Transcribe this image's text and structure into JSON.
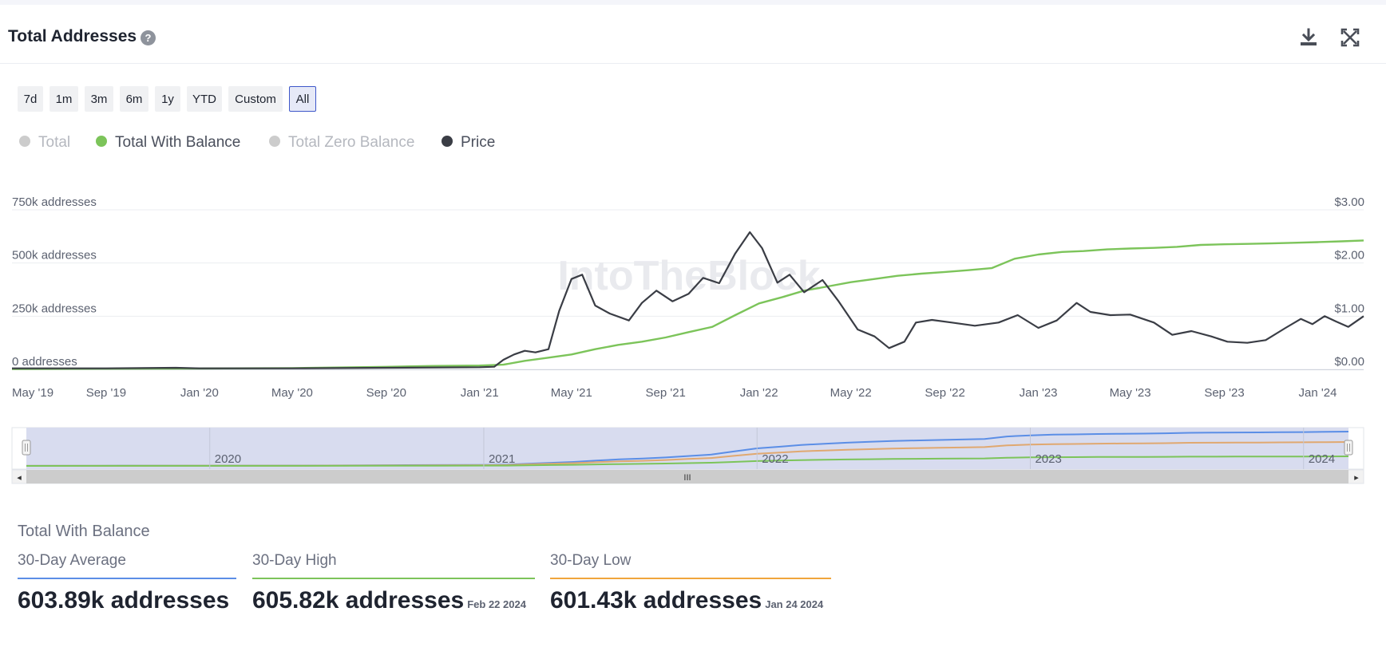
{
  "header": {
    "title": "Total Addresses",
    "help_symbol": "?",
    "download_icon": "download-icon",
    "fullscreen_icon": "fullscreen-icon"
  },
  "ranges": [
    {
      "label": "7d",
      "active": false
    },
    {
      "label": "1m",
      "active": false
    },
    {
      "label": "3m",
      "active": false
    },
    {
      "label": "6m",
      "active": false
    },
    {
      "label": "1y",
      "active": false
    },
    {
      "label": "YTD",
      "active": false
    },
    {
      "label": "Custom",
      "active": false
    },
    {
      "label": "All",
      "active": true
    }
  ],
  "legend": [
    {
      "label": "Total",
      "color": "#cccccc",
      "enabled": false
    },
    {
      "label": "Total With Balance",
      "color": "#7cc45a",
      "enabled": true
    },
    {
      "label": "Total Zero Balance",
      "color": "#cccccc",
      "enabled": false
    },
    {
      "label": "Price",
      "color": "#3a3d45",
      "enabled": true
    }
  ],
  "colors": {
    "balance": "#7cc45a",
    "price": "#3a3d45",
    "navigator_total": "#5b8ee6",
    "navigator_zero": "#e0a870",
    "navigator_balance": "#7cc45a",
    "avg_line": "#5b8ee6",
    "high_line": "#7cc45a",
    "low_line": "#f0a53c"
  },
  "watermark": "IntoTheBlock",
  "chart_data": {
    "type": "line",
    "x_axis": {
      "type": "datetime",
      "range": [
        "2019-05-01",
        "2024-03-01"
      ],
      "tick_labels": [
        "May '19",
        "Sep '19",
        "Jan '20",
        "May '20",
        "Sep '20",
        "Jan '21",
        "May '21",
        "Sep '21",
        "Jan '22",
        "May '22",
        "Sep '22",
        "Jan '23",
        "May '23",
        "Sep '23",
        "Jan '24"
      ],
      "tick_dates": [
        "2019-05-01",
        "2019-09-01",
        "2020-01-01",
        "2020-05-01",
        "2020-09-01",
        "2021-01-01",
        "2021-05-01",
        "2021-09-01",
        "2022-01-01",
        "2022-05-01",
        "2022-09-01",
        "2023-01-01",
        "2023-05-01",
        "2023-09-01",
        "2024-01-01"
      ]
    },
    "y_left": {
      "tick_labels": [
        "0 addresses",
        "250k addresses",
        "500k addresses",
        "750k addresses"
      ],
      "range": [
        0,
        750000
      ]
    },
    "y_right": {
      "tick_labels": [
        "$0.00",
        "$1.00",
        "$2.00",
        "$3.00"
      ],
      "range": [
        0,
        3
      ]
    },
    "grid": true,
    "series": [
      {
        "name": "Total With Balance",
        "axis": "left",
        "points": [
          [
            "2019-05-01",
            2000
          ],
          [
            "2019-09-01",
            3000
          ],
          [
            "2020-01-01",
            4000
          ],
          [
            "2020-05-01",
            6000
          ],
          [
            "2020-09-01",
            12000
          ],
          [
            "2020-11-01",
            16000
          ],
          [
            "2021-01-01",
            18000
          ],
          [
            "2021-02-01",
            22000
          ],
          [
            "2021-03-01",
            40000
          ],
          [
            "2021-04-01",
            55000
          ],
          [
            "2021-05-01",
            70000
          ],
          [
            "2021-06-01",
            95000
          ],
          [
            "2021-07-01",
            115000
          ],
          [
            "2021-08-01",
            130000
          ],
          [
            "2021-09-01",
            150000
          ],
          [
            "2021-10-01",
            175000
          ],
          [
            "2021-11-01",
            200000
          ],
          [
            "2021-12-01",
            255000
          ],
          [
            "2022-01-01",
            310000
          ],
          [
            "2022-02-01",
            340000
          ],
          [
            "2022-03-01",
            370000
          ],
          [
            "2022-04-01",
            390000
          ],
          [
            "2022-05-01",
            410000
          ],
          [
            "2022-06-01",
            425000
          ],
          [
            "2022-07-01",
            440000
          ],
          [
            "2022-08-01",
            450000
          ],
          [
            "2022-09-01",
            458000
          ],
          [
            "2022-10-01",
            466000
          ],
          [
            "2022-11-01",
            476000
          ],
          [
            "2022-12-01",
            520000
          ],
          [
            "2023-01-01",
            540000
          ],
          [
            "2023-02-01",
            552000
          ],
          [
            "2023-03-01",
            556000
          ],
          [
            "2023-04-01",
            564000
          ],
          [
            "2023-05-01",
            568000
          ],
          [
            "2023-06-01",
            571000
          ],
          [
            "2023-07-01",
            576000
          ],
          [
            "2023-08-01",
            585000
          ],
          [
            "2023-09-01",
            588000
          ],
          [
            "2023-10-01",
            590000
          ],
          [
            "2023-11-01",
            592000
          ],
          [
            "2023-12-01",
            595000
          ],
          [
            "2024-01-01",
            598000
          ],
          [
            "2024-02-01",
            602000
          ],
          [
            "2024-03-01",
            606000
          ]
        ]
      },
      {
        "name": "Price",
        "axis": "right",
        "points": [
          [
            "2019-05-01",
            0.02
          ],
          [
            "2019-09-01",
            0.02
          ],
          [
            "2019-12-01",
            0.03
          ],
          [
            "2020-01-01",
            0.02
          ],
          [
            "2020-05-01",
            0.02
          ],
          [
            "2020-09-01",
            0.03
          ],
          [
            "2021-01-01",
            0.04
          ],
          [
            "2021-01-20",
            0.05
          ],
          [
            "2021-02-01",
            0.18
          ],
          [
            "2021-02-15",
            0.28
          ],
          [
            "2021-03-01",
            0.35
          ],
          [
            "2021-03-15",
            0.32
          ],
          [
            "2021-04-01",
            0.38
          ],
          [
            "2021-04-15",
            1.1
          ],
          [
            "2021-05-01",
            1.7
          ],
          [
            "2021-05-15",
            1.78
          ],
          [
            "2021-06-01",
            1.2
          ],
          [
            "2021-06-20",
            1.05
          ],
          [
            "2021-07-15",
            0.92
          ],
          [
            "2021-08-01",
            1.25
          ],
          [
            "2021-08-20",
            1.48
          ],
          [
            "2021-09-10",
            1.28
          ],
          [
            "2021-10-01",
            1.42
          ],
          [
            "2021-10-20",
            1.72
          ],
          [
            "2021-11-10",
            1.62
          ],
          [
            "2021-12-01",
            2.18
          ],
          [
            "2021-12-20",
            2.58
          ],
          [
            "2022-01-05",
            2.28
          ],
          [
            "2022-01-25",
            1.63
          ],
          [
            "2022-02-10",
            1.78
          ],
          [
            "2022-03-01",
            1.45
          ],
          [
            "2022-03-25",
            1.68
          ],
          [
            "2022-04-15",
            1.28
          ],
          [
            "2022-05-10",
            0.75
          ],
          [
            "2022-06-01",
            0.62
          ],
          [
            "2022-06-20",
            0.4
          ],
          [
            "2022-07-10",
            0.52
          ],
          [
            "2022-07-25",
            0.88
          ],
          [
            "2022-08-15",
            0.93
          ],
          [
            "2022-09-10",
            0.88
          ],
          [
            "2022-10-10",
            0.82
          ],
          [
            "2022-11-10",
            0.88
          ],
          [
            "2022-12-05",
            1.02
          ],
          [
            "2023-01-01",
            0.78
          ],
          [
            "2023-01-25",
            0.92
          ],
          [
            "2023-02-20",
            1.25
          ],
          [
            "2023-03-10",
            1.08
          ],
          [
            "2023-04-05",
            1.02
          ],
          [
            "2023-05-01",
            1.03
          ],
          [
            "2023-06-01",
            0.88
          ],
          [
            "2023-06-25",
            0.65
          ],
          [
            "2023-07-20",
            0.72
          ],
          [
            "2023-08-15",
            0.62
          ],
          [
            "2023-09-05",
            0.52
          ],
          [
            "2023-10-01",
            0.5
          ],
          [
            "2023-10-25",
            0.55
          ],
          [
            "2023-11-20",
            0.78
          ],
          [
            "2023-12-10",
            0.95
          ],
          [
            "2023-12-25",
            0.85
          ],
          [
            "2024-01-10",
            1.0
          ],
          [
            "2024-01-25",
            0.9
          ],
          [
            "2024-02-10",
            0.8
          ],
          [
            "2024-03-01",
            1.0
          ]
        ]
      }
    ]
  },
  "navigator": {
    "year_labels": [
      "2020",
      "2021",
      "2022",
      "2023",
      "2024"
    ],
    "year_dates": [
      "2020-01-01",
      "2021-01-01",
      "2022-01-01",
      "2023-01-01",
      "2024-01-01"
    ],
    "grip_symbol": "III",
    "left_arrow": "◂",
    "right_arrow": "▸"
  },
  "stats": {
    "title": "Total With Balance",
    "items": [
      {
        "label": "30-Day Average",
        "value": "603.89k addresses",
        "date": "",
        "color": "#5b8ee6"
      },
      {
        "label": "30-Day High",
        "value": "605.82k addresses",
        "date": "Feb 22 2024",
        "color": "#7cc45a"
      },
      {
        "label": "30-Day Low",
        "value": "601.43k addresses",
        "date": "Jan 24 2024",
        "color": "#f0a53c"
      }
    ]
  }
}
